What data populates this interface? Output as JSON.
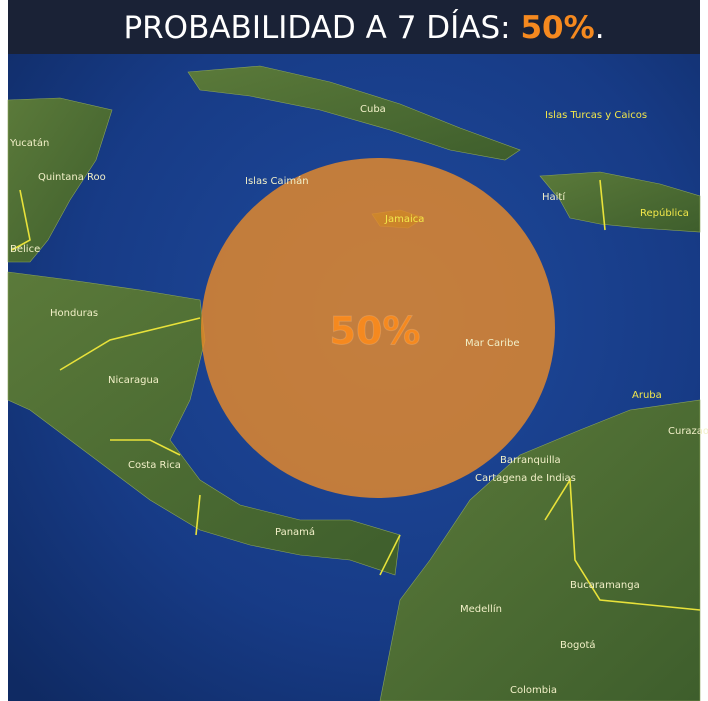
{
  "header": {
    "title_prefix": "PROBABILIDAD A 7 DÍAS: ",
    "title_value": "50%",
    "title_suffix": "."
  },
  "area": {
    "label": "50%"
  },
  "places": [
    "Cuba",
    "Islas Turcas y Caicos",
    "Islas Caimán",
    "Jamaica",
    "Haití",
    "República",
    "Quintana Roo",
    "Yucatán",
    "Belice",
    "Honduras",
    "Nicaragua",
    "Costa Rica",
    "Panamá",
    "Mar Caribe",
    "Aruba",
    "Curazao",
    "Barranquilla",
    "Cartagena de Indias",
    "Medellín",
    "Bogotá",
    "Bucaramanga",
    "Colombia"
  ]
}
